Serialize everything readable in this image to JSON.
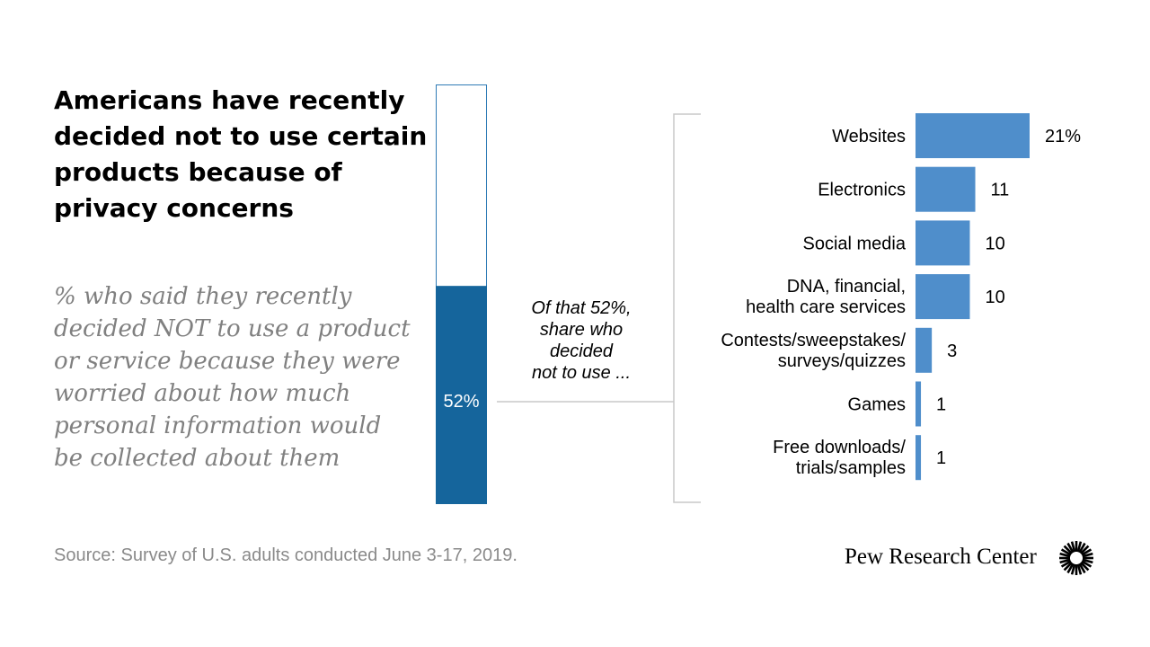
{
  "title": "Americans have recently decided not to use certain products because of privacy concerns",
  "subtitle": "% who said they recently decided NOT to use a product or service because they were worried about how much personal information would be collected about them",
  "source": "Source: Survey of U.S. adults conducted June 3-17, 2019.",
  "brand": "Pew Research Center",
  "colors": {
    "total_bar": "#15659c",
    "total_outline": "#2f7bb6",
    "bars": "#4f8ecb",
    "connector": "#c8c8c8"
  },
  "chart_data": [
    {
      "type": "bar",
      "orientation": "vertical-stacked",
      "value": 52,
      "max": 100,
      "value_label": "52%"
    },
    {
      "type": "bar",
      "orientation": "horizontal",
      "note": [
        "Of that 52%,",
        "share who",
        "decided",
        "not to use ..."
      ],
      "xlim": [
        0,
        21
      ],
      "categories": [
        [
          "Websites"
        ],
        [
          "Electronics"
        ],
        [
          "Social media"
        ],
        [
          "DNA, financial,",
          "health care services"
        ],
        [
          "Contests/sweepstakes/",
          "surveys/quizzes"
        ],
        [
          "Games"
        ],
        [
          "Free downloads/",
          "trials/samples"
        ]
      ],
      "values": [
        21,
        11,
        10,
        10,
        3,
        1,
        1
      ],
      "value_labels": [
        "21%",
        "11",
        "10",
        "10",
        "3",
        "1",
        "1"
      ]
    }
  ]
}
